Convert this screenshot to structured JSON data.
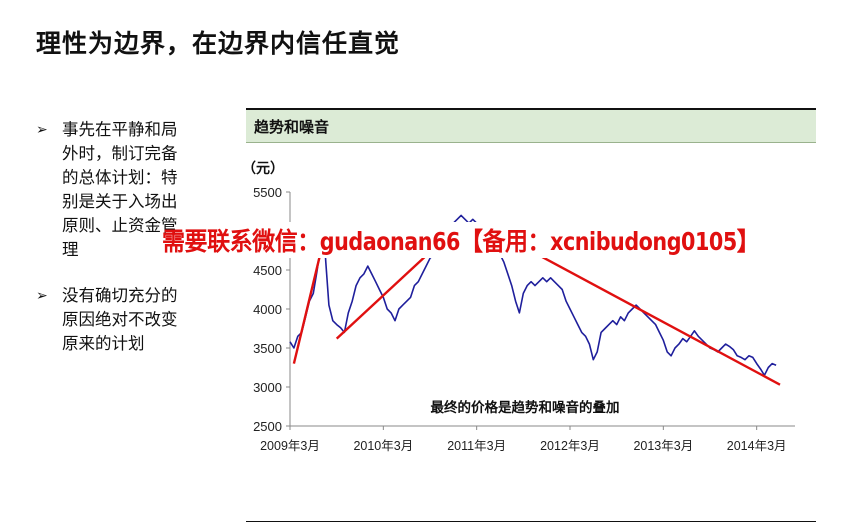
{
  "title": "理性为边界，在边界内信任直觉",
  "bullets": [
    {
      "arrow": "➢",
      "text": "事先在平静和局外时，制订完备的总体计划：特别是关于入场出原则、止资金管理"
    },
    {
      "arrow": "➢",
      "text": "没有确切充分的原因绝对不改变原来的计划"
    }
  ],
  "panel": {
    "header": "趋势和噪音"
  },
  "watermark": "需要联系微信：gudaonan66【备用：xcnibudong0105】",
  "chart_data": {
    "type": "line",
    "unit_label": "（元）",
    "annotation": "最终的价格是趋势和噪音的叠加",
    "ylim": [
      2500,
      5500
    ],
    "y_ticks": [
      "5500",
      "4500",
      "4000",
      "3500",
      "3000",
      "2500"
    ],
    "x_ticks": [
      "2009年3月",
      "2010年3月",
      "2011年3月",
      "2012年3月",
      "2013年3月",
      "2014年3月"
    ],
    "x_range": [
      0,
      63
    ],
    "grid": false,
    "series": [
      {
        "color": "#1f1f9c",
        "points": [
          [
            0,
            3580
          ],
          [
            0.5,
            3500
          ],
          [
            1,
            3650
          ],
          [
            1.5,
            3700
          ],
          [
            2,
            3900
          ],
          [
            2.5,
            4100
          ],
          [
            3,
            4200
          ],
          [
            3.5,
            4500
          ],
          [
            4,
            4850
          ],
          [
            4.3,
            5100
          ],
          [
            4.6,
            4600
          ],
          [
            5,
            4050
          ],
          [
            5.5,
            3850
          ],
          [
            6,
            3800
          ],
          [
            6.5,
            3760
          ],
          [
            7,
            3700
          ],
          [
            7.5,
            3950
          ],
          [
            8,
            4100
          ],
          [
            8.5,
            4300
          ],
          [
            9,
            4400
          ],
          [
            9.5,
            4450
          ],
          [
            10,
            4550
          ],
          [
            10.5,
            4450
          ],
          [
            11,
            4350
          ],
          [
            11.5,
            4250
          ],
          [
            12,
            4150
          ],
          [
            12.5,
            4000
          ],
          [
            13,
            3950
          ],
          [
            13.5,
            3850
          ],
          [
            14,
            4000
          ],
          [
            14.5,
            4050
          ],
          [
            15,
            4100
          ],
          [
            15.5,
            4150
          ],
          [
            16,
            4300
          ],
          [
            16.5,
            4350
          ],
          [
            17,
            4450
          ],
          [
            17.5,
            4550
          ],
          [
            18,
            4650
          ],
          [
            18.5,
            4700
          ],
          [
            19,
            4800
          ],
          [
            19.5,
            4900
          ],
          [
            20,
            5000
          ],
          [
            20.5,
            5050
          ],
          [
            21,
            5100
          ],
          [
            21.5,
            5150
          ],
          [
            22,
            5200
          ],
          [
            22.5,
            5150
          ],
          [
            23,
            5100
          ],
          [
            23.5,
            5150
          ],
          [
            24,
            5100
          ],
          [
            24.5,
            5050
          ],
          [
            25,
            4950
          ],
          [
            25.5,
            4900
          ],
          [
            26,
            4850
          ],
          [
            26.5,
            4750
          ],
          [
            27,
            4700
          ],
          [
            27.5,
            4600
          ],
          [
            28,
            4450
          ],
          [
            28.5,
            4300
          ],
          [
            29,
            4100
          ],
          [
            29.5,
            3950
          ],
          [
            30,
            4200
          ],
          [
            30.5,
            4300
          ],
          [
            31,
            4350
          ],
          [
            31.5,
            4300
          ],
          [
            32,
            4350
          ],
          [
            32.5,
            4400
          ],
          [
            33,
            4350
          ],
          [
            33.5,
            4400
          ],
          [
            34,
            4350
          ],
          [
            34.5,
            4300
          ],
          [
            35,
            4250
          ],
          [
            35.5,
            4100
          ],
          [
            36,
            4000
          ],
          [
            36.5,
            3900
          ],
          [
            37,
            3800
          ],
          [
            37.5,
            3700
          ],
          [
            38,
            3650
          ],
          [
            38.5,
            3550
          ],
          [
            39,
            3350
          ],
          [
            39.5,
            3450
          ],
          [
            40,
            3700
          ],
          [
            40.5,
            3750
          ],
          [
            41,
            3800
          ],
          [
            41.5,
            3850
          ],
          [
            42,
            3800
          ],
          [
            42.5,
            3900
          ],
          [
            43,
            3850
          ],
          [
            43.5,
            3950
          ],
          [
            44,
            4000
          ],
          [
            44.5,
            4050
          ],
          [
            45,
            4000
          ],
          [
            45.5,
            3950
          ],
          [
            46,
            3900
          ],
          [
            46.5,
            3850
          ],
          [
            47,
            3800
          ],
          [
            47.5,
            3700
          ],
          [
            48,
            3600
          ],
          [
            48.5,
            3450
          ],
          [
            49,
            3400
          ],
          [
            49.5,
            3500
          ],
          [
            50,
            3550
          ],
          [
            50.5,
            3620
          ],
          [
            51,
            3580
          ],
          [
            51.5,
            3650
          ],
          [
            52,
            3720
          ],
          [
            52.5,
            3650
          ],
          [
            53,
            3600
          ],
          [
            53.5,
            3550
          ],
          [
            54,
            3500
          ],
          [
            54.5,
            3480
          ],
          [
            55,
            3450
          ],
          [
            55.5,
            3500
          ],
          [
            56,
            3550
          ],
          [
            56.5,
            3520
          ],
          [
            57,
            3480
          ],
          [
            57.5,
            3400
          ],
          [
            58,
            3380
          ],
          [
            58.5,
            3350
          ],
          [
            59,
            3400
          ],
          [
            59.5,
            3380
          ],
          [
            60,
            3300
          ],
          [
            60.5,
            3230
          ],
          [
            61,
            3150
          ],
          [
            61.5,
            3250
          ],
          [
            62,
            3300
          ],
          [
            62.5,
            3280
          ]
        ]
      },
      {
        "color": "#e01010",
        "points": [
          [
            0.5,
            3300
          ],
          [
            4.6,
            5000
          ]
        ]
      },
      {
        "color": "#e01010",
        "points": [
          [
            6,
            3620
          ],
          [
            22,
            5100
          ]
        ]
      },
      {
        "color": "#e01010",
        "points": [
          [
            29,
            4850
          ],
          [
            63,
            3030
          ]
        ]
      }
    ]
  }
}
